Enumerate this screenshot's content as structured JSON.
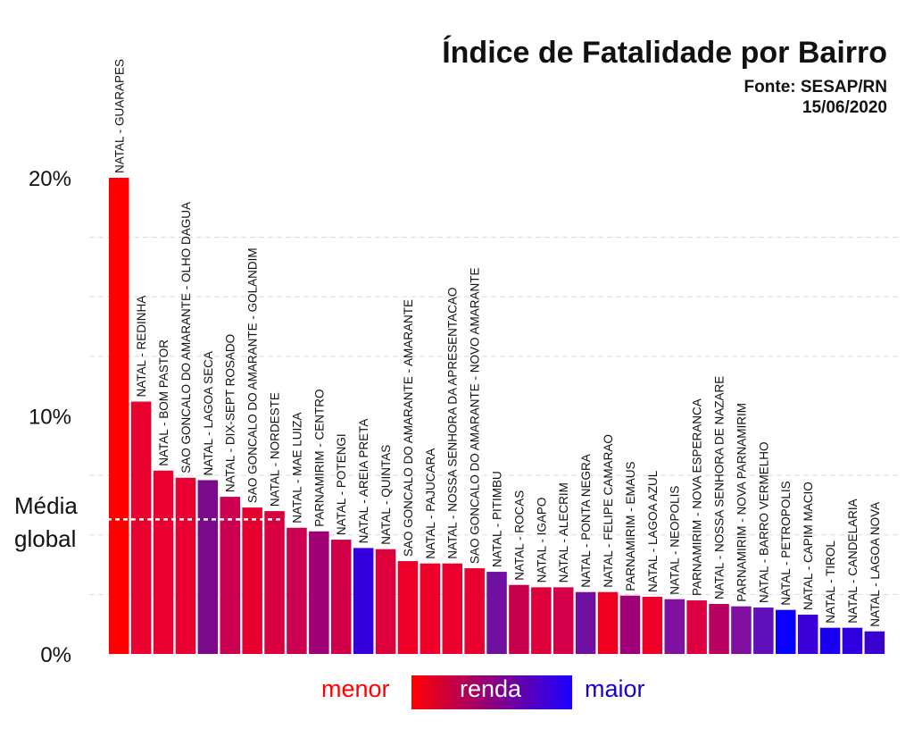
{
  "title": "Índice de Fatalidade por Bairro",
  "source": "Fonte: SESAP/RN",
  "date": "15/06/2020",
  "legend": {
    "low": "menor",
    "mid": "renda",
    "high": "maior",
    "low_color": "#ff0000",
    "high_color": "#1a00ff"
  },
  "chart_data": {
    "type": "bar",
    "title": "Índice de Fatalidade por Bairro",
    "ylim": [
      0,
      20
    ],
    "yticks": [
      {
        "value": 0,
        "label": "0%"
      },
      {
        "value": 10,
        "label": "10%"
      },
      {
        "value": 20,
        "label": "20%"
      }
    ],
    "grid": true,
    "mean": {
      "value": 5.65,
      "label_line1": "Média",
      "label_line2": "global"
    },
    "categories": [
      "NATAL - GUARAPES",
      "NATAL - REDINHA",
      "NATAL - BOM PASTOR",
      "SAO GONCALO DO AMARANTE - OLHO DAGUA",
      "NATAL - LAGOA SECA",
      "NATAL - DIX-SEPT ROSADO",
      "SAO GONCALO DO AMARANTE - GOLANDIM",
      "NATAL - NORDESTE",
      "NATAL - MAE LUIZA",
      "PARNAMIRIM - CENTRO",
      "NATAL - POTENGI",
      "NATAL - AREIA PRETA",
      "NATAL - QUINTAS",
      "SAO GONCALO DO AMARANTE - AMARANTE",
      "NATAL - PAJUCARA",
      "NATAL - NOSSA SENHORA DA APRESENTACAO",
      "SAO GONCALO DO AMARANTE - NOVO AMARANTE",
      "NATAL - PITIMBU",
      "NATAL - ROCAS",
      "NATAL - IGAPO",
      "NATAL - ALECRIM",
      "NATAL - PONTA NEGRA",
      "NATAL - FELIPE CAMARAO",
      "PARNAMIRIM - EMAUS",
      "NATAL - LAGOA AZUL",
      "NATAL - NEOPOLIS",
      "PARNAMIRIM - NOVA ESPERANCA",
      "NATAL - NOSSA SENHORA DE NAZARE",
      "PARNAMIRIM - NOVA PARNAMIRIM",
      "NATAL - BARRO VERMELHO",
      "NATAL - PETROPOLIS",
      "NATAL - CAPIM MACIO",
      "NATAL - TIROL",
      "NATAL - CANDELARIA",
      "NATAL - LAGOA NOVA"
    ],
    "values": [
      20.0,
      10.6,
      7.7,
      7.4,
      7.3,
      6.6,
      6.15,
      6.0,
      5.3,
      5.15,
      4.8,
      4.45,
      4.4,
      3.9,
      3.8,
      3.8,
      3.6,
      3.45,
      2.9,
      2.8,
      2.8,
      2.6,
      2.6,
      2.45,
      2.4,
      2.3,
      2.25,
      2.1,
      2.0,
      1.95,
      1.85,
      1.65,
      1.1,
      1.1,
      0.95
    ],
    "colors": [
      "#ff0000",
      "#e8002e",
      "#ea0030",
      "#e80033",
      "#7a0a8a",
      "#cc0050",
      "#e6002f",
      "#d8003e",
      "#cc0050",
      "#a00075",
      "#d00048",
      "#3300dd",
      "#dd003a",
      "#ee0028",
      "#ee0028",
      "#ea002c",
      "#e8002e",
      "#7010a0",
      "#c8004c",
      "#dd003a",
      "#d4004a",
      "#7010a0",
      "#f00020",
      "#a00075",
      "#ee0028",
      "#8010a0",
      "#dd0040",
      "#b80060",
      "#8010a0",
      "#6010b8",
      "#0a00ff",
      "#3a00d8",
      "#1a00f0",
      "#2e00e0",
      "#3a00d0"
    ]
  }
}
